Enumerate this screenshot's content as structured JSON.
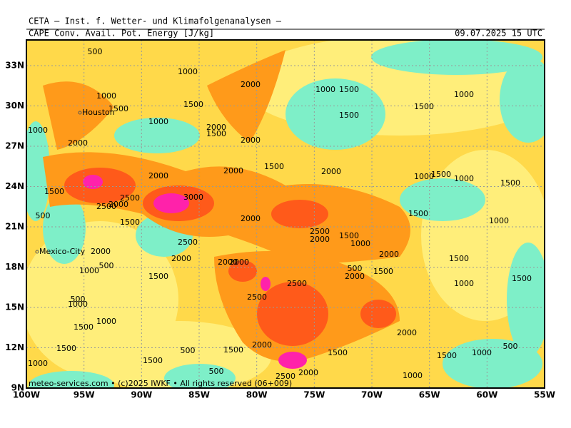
{
  "header": {
    "title": "CETA – Inst. f. Wetter- und Klimafolgenanalysen –",
    "subtitle": "CAPE Conv. Avail. Pot. Energy [J/kg]",
    "valid_time": "09.07.2025 15 UTC"
  },
  "footer": "meteo-services.com • (c)2025 IWKF • All rights reserved (06+009)",
  "lon_labels": [
    "100W",
    "95W",
    "90W",
    "85W",
    "80W",
    "75W",
    "70W",
    "65W",
    "60W",
    "55W"
  ],
  "lat_labels": [
    "9N",
    "12N",
    "15N",
    "18N",
    "21N",
    "24N",
    "27N",
    "30N",
    "33N"
  ],
  "cities": [
    "Houston",
    "Mexico-City"
  ],
  "contour_labels": [
    "500",
    "1000",
    "2000",
    "1000",
    "1500",
    "1000",
    "1000",
    "1500",
    "1500",
    "1500",
    "1500",
    "1000",
    "1000",
    "2000",
    "1500",
    "2000",
    "2000",
    "2000",
    "1500",
    "2000",
    "2000",
    "1000",
    "1500",
    "1000",
    "1500",
    "1500",
    "2500",
    "3000",
    "2000",
    "2500",
    "1500",
    "500",
    "2000",
    "1500",
    "1000",
    "2500",
    "1500",
    "2000",
    "2500",
    "1000",
    "2000",
    "2000",
    "2000",
    "2000",
    "2000",
    "1500",
    "1000",
    "500",
    "500",
    "1500",
    "2000",
    "1500",
    "1500",
    "2500",
    "1000",
    "2500",
    "500",
    "1000",
    "1500",
    "1000",
    "2000",
    "1500",
    "500",
    "1500",
    "2000",
    "1500",
    "1000",
    "500",
    "1000",
    "1500",
    "1500",
    "500",
    "2500",
    "2000",
    "1000"
  ]
}
